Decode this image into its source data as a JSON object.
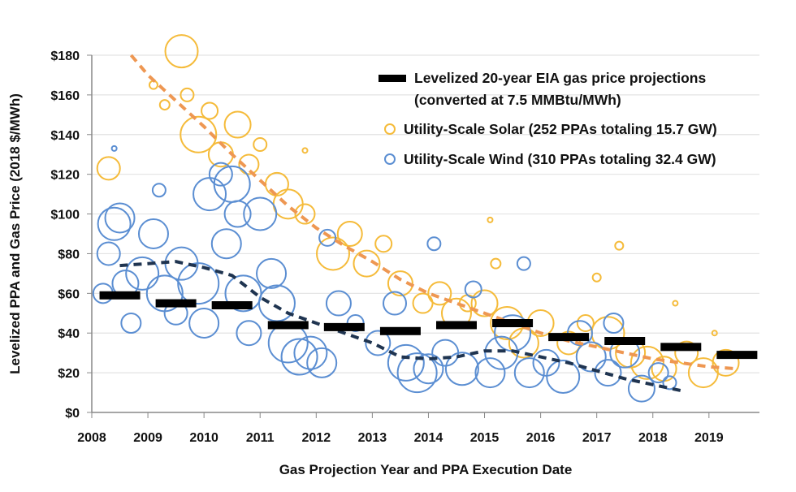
{
  "chart_data": {
    "type": "scatter",
    "title": "",
    "xlabel": "Gas Projection Year and PPA Execution Date",
    "ylabel": "Levelized PPA and Gas Price (2018 $/MWh)",
    "xlim": [
      2008,
      2019.9
    ],
    "ylim": [
      0,
      180
    ],
    "x_ticks": [
      "2008",
      "2009",
      "2010",
      "2011",
      "2012",
      "2013",
      "2014",
      "2015",
      "2016",
      "2017",
      "2018",
      "2019"
    ],
    "y_ticks": [
      "$0",
      "$20",
      "$40",
      "$60",
      "$80",
      "$100",
      "$120",
      "$140",
      "$160",
      "$180"
    ],
    "grid": true,
    "legend_position": "top-right",
    "colors": {
      "solar": "#F5BB3A",
      "wind": "#5B8ED2",
      "solar_trend": "#EE9752",
      "wind_trend": "#1F3450",
      "gas": "#000000"
    },
    "legend": {
      "gas_line1": "Levelized 20-year EIA gas price projections",
      "gas_line2": "(converted at 7.5 MMBtu/MWh)",
      "solar": "Utility-Scale Solar (252 PPAs totaling 15.7 GW)",
      "wind": "Utility-Scale Wind (310 PPAs totaling 32.4 GW)"
    },
    "gas_projections": {
      "x": [
        2008.5,
        2009.5,
        2010.5,
        2011.5,
        2012.5,
        2013.5,
        2014.5,
        2015.5,
        2016.5,
        2017.5,
        2018.5,
        2019.5
      ],
      "y": [
        59,
        55,
        54,
        44,
        43,
        41,
        44,
        45,
        38,
        36,
        33,
        29
      ]
    },
    "wind_trend": {
      "x": [
        2008.5,
        2009.0,
        2009.5,
        2010.0,
        2010.5,
        2011.0,
        2011.5,
        2012.0,
        2012.5,
        2013.0,
        2013.5,
        2014.0,
        2014.5,
        2015.0,
        2015.5,
        2016.0,
        2016.5,
        2017.0,
        2017.5,
        2018.0,
        2018.5
      ],
      "y": [
        74,
        75,
        76,
        73,
        69,
        58,
        50,
        45,
        40,
        35,
        28,
        27,
        28,
        31,
        31,
        28,
        25,
        21,
        17,
        14,
        11
      ]
    },
    "solar_trend": {
      "x": [
        2008.7,
        2009.0,
        2009.5,
        2010.0,
        2010.5,
        2011.0,
        2011.5,
        2012.0,
        2012.5,
        2013.0,
        2013.5,
        2014.0,
        2014.5,
        2015.0,
        2015.5,
        2016.0,
        2016.5,
        2017.0,
        2017.5,
        2018.0,
        2018.5,
        2019.0,
        2019.5
      ],
      "y": [
        180,
        170,
        157,
        144,
        130,
        117,
        104,
        93,
        84,
        76,
        67,
        60,
        55,
        50,
        45,
        40,
        36,
        33,
        30,
        27,
        25,
        23,
        22
      ]
    },
    "wind_ppas": [
      [
        2008.2,
        60,
        12
      ],
      [
        2008.3,
        80,
        14
      ],
      [
        2008.4,
        95,
        20
      ],
      [
        2008.5,
        98,
        18
      ],
      [
        2008.6,
        65,
        16
      ],
      [
        2008.7,
        45,
        12
      ],
      [
        2008.4,
        133,
        3
      ],
      [
        2008.9,
        70,
        20
      ],
      [
        2009.1,
        90,
        18
      ],
      [
        2009.2,
        112,
        8
      ],
      [
        2009.3,
        60,
        22
      ],
      [
        2009.5,
        50,
        14
      ],
      [
        2009.6,
        75,
        20
      ],
      [
        2009.9,
        65,
        25
      ],
      [
        2010.0,
        45,
        18
      ],
      [
        2010.1,
        110,
        20
      ],
      [
        2010.3,
        120,
        14
      ],
      [
        2010.5,
        115,
        22
      ],
      [
        2010.6,
        100,
        16
      ],
      [
        2010.4,
        85,
        18
      ],
      [
        2010.7,
        60,
        22
      ],
      [
        2010.8,
        40,
        15
      ],
      [
        2011.0,
        100,
        20
      ],
      [
        2011.2,
        70,
        18
      ],
      [
        2011.3,
        55,
        22
      ],
      [
        2011.5,
        35,
        24
      ],
      [
        2011.7,
        28,
        22
      ],
      [
        2011.9,
        30,
        20
      ],
      [
        2012.1,
        25,
        18
      ],
      [
        2012.2,
        88,
        10
      ],
      [
        2012.4,
        55,
        15
      ],
      [
        2012.7,
        45,
        10
      ],
      [
        2013.1,
        35,
        15
      ],
      [
        2013.4,
        55,
        14
      ],
      [
        2013.6,
        25,
        22
      ],
      [
        2013.8,
        20,
        24
      ],
      [
        2014.0,
        22,
        18
      ],
      [
        2014.1,
        85,
        8
      ],
      [
        2014.3,
        30,
        16
      ],
      [
        2014.6,
        22,
        20
      ],
      [
        2014.8,
        62,
        10
      ],
      [
        2015.1,
        20,
        18
      ],
      [
        2015.3,
        30,
        20
      ],
      [
        2015.5,
        40,
        22
      ],
      [
        2015.7,
        75,
        8
      ],
      [
        2015.8,
        20,
        18
      ],
      [
        2016.1,
        25,
        16
      ],
      [
        2016.4,
        18,
        20
      ],
      [
        2016.7,
        40,
        15
      ],
      [
        2016.9,
        28,
        18
      ],
      [
        2017.2,
        20,
        16
      ],
      [
        2017.5,
        30,
        18
      ],
      [
        2017.8,
        12,
        16
      ],
      [
        2018.1,
        20,
        12
      ],
      [
        2018.3,
        15,
        8
      ],
      [
        2017.3,
        45,
        12
      ]
    ],
    "solar_ppas": [
      [
        2008.3,
        123,
        14
      ],
      [
        2009.1,
        165,
        5
      ],
      [
        2009.3,
        155,
        6
      ],
      [
        2009.6,
        182,
        20
      ],
      [
        2009.7,
        160,
        8
      ],
      [
        2009.9,
        140,
        22
      ],
      [
        2010.1,
        152,
        10
      ],
      [
        2010.3,
        130,
        15
      ],
      [
        2010.6,
        145,
        16
      ],
      [
        2010.8,
        125,
        12
      ],
      [
        2011.0,
        135,
        8
      ],
      [
        2011.3,
        115,
        14
      ],
      [
        2011.5,
        105,
        18
      ],
      [
        2011.8,
        100,
        12
      ],
      [
        2011.8,
        132,
        3
      ],
      [
        2012.3,
        80,
        20
      ],
      [
        2012.6,
        90,
        15
      ],
      [
        2012.9,
        75,
        16
      ],
      [
        2013.2,
        85,
        10
      ],
      [
        2013.5,
        65,
        15
      ],
      [
        2013.9,
        55,
        12
      ],
      [
        2014.2,
        60,
        14
      ],
      [
        2014.5,
        50,
        18
      ],
      [
        2014.7,
        55,
        10
      ],
      [
        2015.0,
        55,
        16
      ],
      [
        2015.1,
        97,
        3
      ],
      [
        2015.2,
        75,
        6
      ],
      [
        2015.4,
        45,
        20
      ],
      [
        2015.7,
        35,
        18
      ],
      [
        2016.0,
        45,
        16
      ],
      [
        2016.5,
        35,
        14
      ],
      [
        2016.8,
        45,
        10
      ],
      [
        2017.0,
        68,
        5
      ],
      [
        2017.2,
        40,
        20
      ],
      [
        2017.4,
        84,
        5
      ],
      [
        2017.6,
        30,
        18
      ],
      [
        2017.9,
        25,
        20
      ],
      [
        2018.2,
        22,
        15
      ],
      [
        2018.4,
        55,
        3
      ],
      [
        2018.6,
        30,
        14
      ],
      [
        2018.9,
        20,
        18
      ],
      [
        2019.1,
        40,
        3
      ],
      [
        2019.3,
        25,
        16
      ]
    ]
  }
}
